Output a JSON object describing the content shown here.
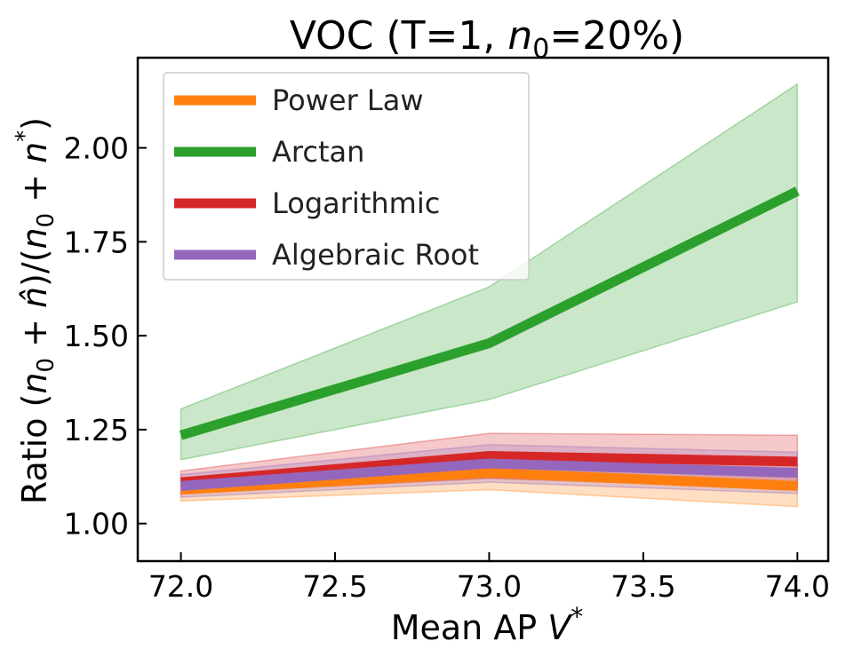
{
  "chart_data": {
    "type": "line",
    "title_main": "VOC (T=1, ",
    "title_var": "n",
    "title_sub": "0",
    "title_tail": "=20%)",
    "title": "VOC (T=1, n0=20%)",
    "xlabel": "Mean AP V*",
    "xlabel_text": "Mean AP ",
    "xlabel_var": "V",
    "xlabel_sup": "*",
    "ylabel": "Ratio (n0 + n̂)/(n0 + n*)",
    "ylabel_text": "Ratio (",
    "ylabel_n0": "n",
    "ylabel_n0_sub": "0",
    "ylabel_plus": " + ",
    "ylabel_nhat": "n̂",
    "ylabel_mid": ")/(",
    "ylabel_n0b": "n",
    "ylabel_n0b_sub": "0",
    "ylabel_plus2": " + ",
    "ylabel_nstar": "n",
    "ylabel_star": "*",
    "ylabel_close": ")",
    "x": [
      72.0,
      73.0,
      74.0
    ],
    "xlim": [
      71.86,
      74.1
    ],
    "ylim": [
      0.9,
      2.24
    ],
    "xticks": [
      72.0,
      72.5,
      73.0,
      73.5,
      74.0
    ],
    "xtick_labels": [
      "72.0",
      "72.5",
      "73.0",
      "73.5",
      "74.0"
    ],
    "yticks": [
      1.0,
      1.25,
      1.5,
      1.75,
      2.0
    ],
    "ytick_labels": [
      "1.00",
      "1.25",
      "1.50",
      "1.75",
      "2.00"
    ],
    "grid": false,
    "legend_position": "upper-left",
    "series": [
      {
        "name": "Power Law",
        "color": "#ff7f0e",
        "values": [
          1.09,
          1.135,
          1.1
        ],
        "lower": [
          1.06,
          1.09,
          1.045
        ],
        "upper": [
          1.12,
          1.18,
          1.155
        ]
      },
      {
        "name": "Arctan",
        "color": "#2ca02c",
        "values": [
          1.235,
          1.48,
          1.885
        ],
        "lower": [
          1.17,
          1.33,
          1.59
        ],
        "upper": [
          1.305,
          1.63,
          2.17
        ]
      },
      {
        "name": "Logarithmic",
        "color": "#d62728",
        "values": [
          1.11,
          1.18,
          1.165
        ],
        "lower": [
          1.08,
          1.12,
          1.095
        ],
        "upper": [
          1.14,
          1.24,
          1.235
        ]
      },
      {
        "name": "Algebraic Root",
        "color": "#9467bd",
        "values": [
          1.1,
          1.16,
          1.135
        ],
        "lower": [
          1.07,
          1.11,
          1.08
        ],
        "upper": [
          1.13,
          1.21,
          1.19
        ]
      }
    ]
  }
}
